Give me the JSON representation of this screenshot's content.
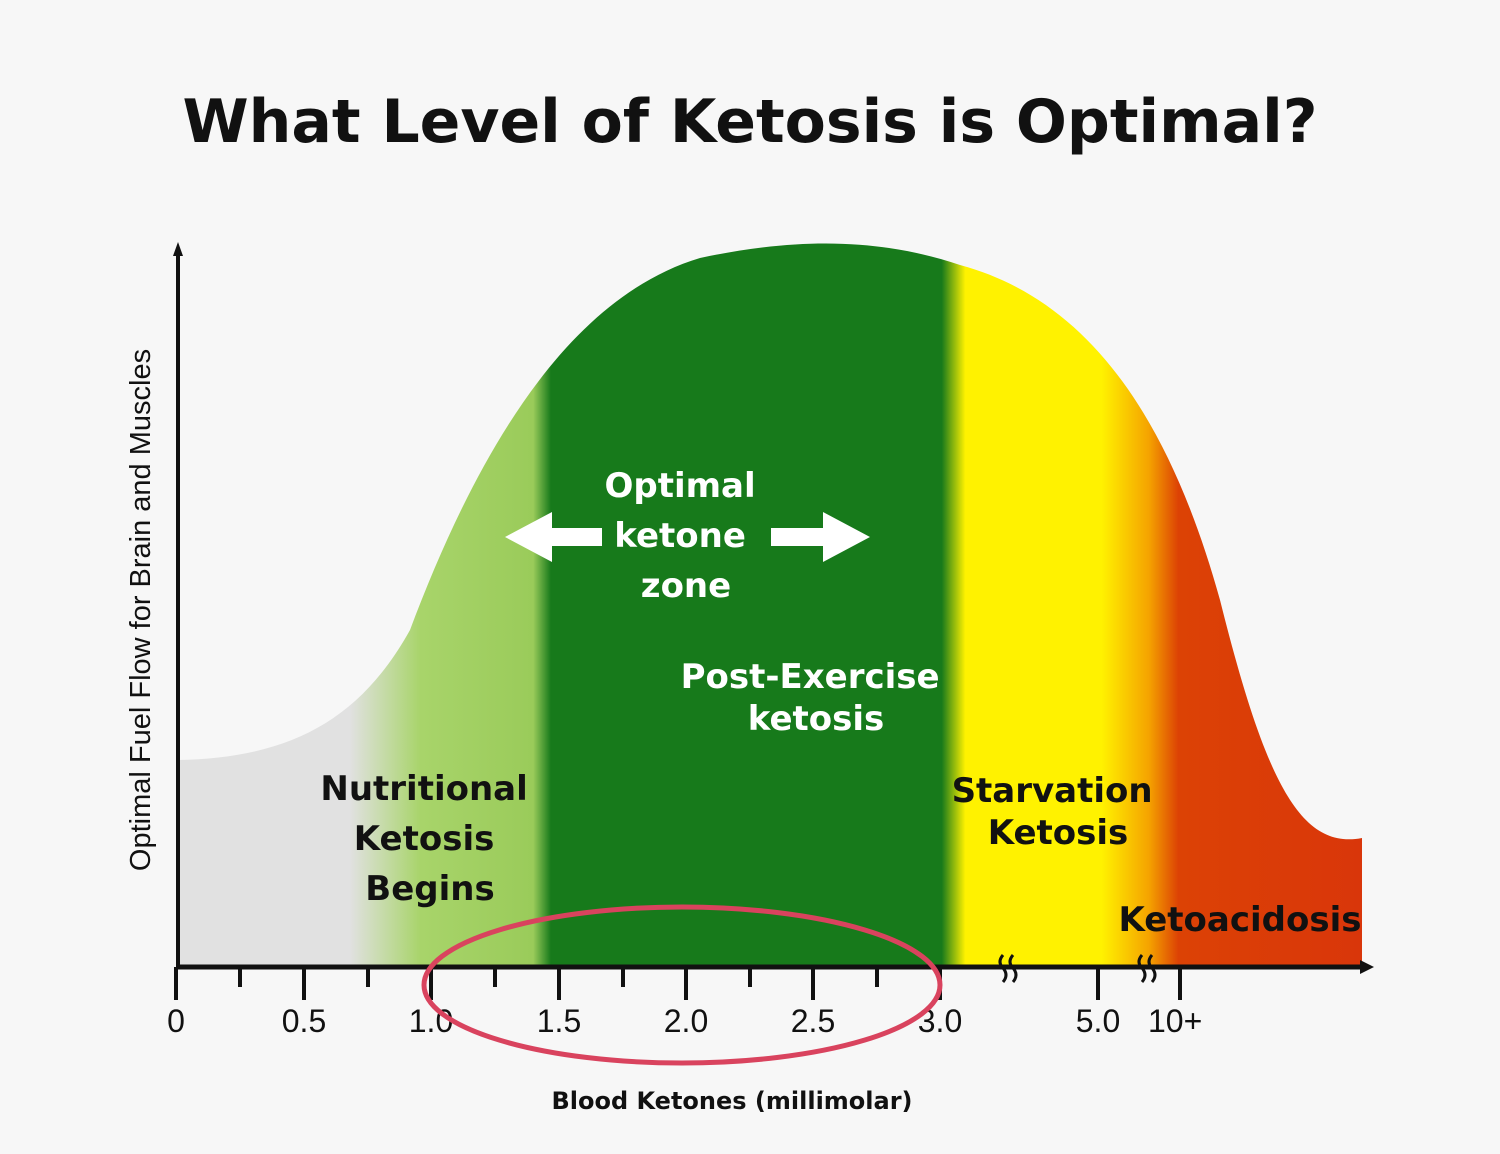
{
  "chart_data": {
    "type": "area",
    "title": "What Level of Ketosis is Optimal?",
    "xlabel": "Blood Ketones (millimolar)",
    "ylabel": "Optimal Fuel Flow for Brain and Muscles",
    "x_tick_labels": [
      "0",
      "0.5",
      "1.0",
      "1.5",
      "2.0",
      "2.5",
      "3.0",
      "5.0",
      "10+"
    ],
    "axis_breaks": [
      "3.0-5.0",
      "5.0-10+"
    ],
    "zones": [
      {
        "name": "Nutritional Ketosis Begins",
        "lines": [
          "Nutritional",
          "Ketosis",
          "Begins"
        ],
        "color": "#9fcf5f"
      },
      {
        "name": "Optimal ketone zone",
        "lines": [
          "Optimal",
          "ketone",
          "zone"
        ],
        "color": "#177a1b"
      },
      {
        "name": "Post-Exercise ketosis",
        "lines": [
          "Post-Exercise",
          "ketosis"
        ],
        "color": "#177a1b"
      },
      {
        "name": "Starvation Ketosis",
        "lines": [
          "Starvation",
          "Ketosis"
        ],
        "color": "#fff200"
      },
      {
        "name": "Ketoacidosis",
        "lines": [
          "Ketoacidosis"
        ],
        "color": "#d93a0a"
      }
    ],
    "highlight": "1.0-3.0",
    "highlight_color": "#d9435e",
    "background_zone_color": "#e1e1e1"
  }
}
